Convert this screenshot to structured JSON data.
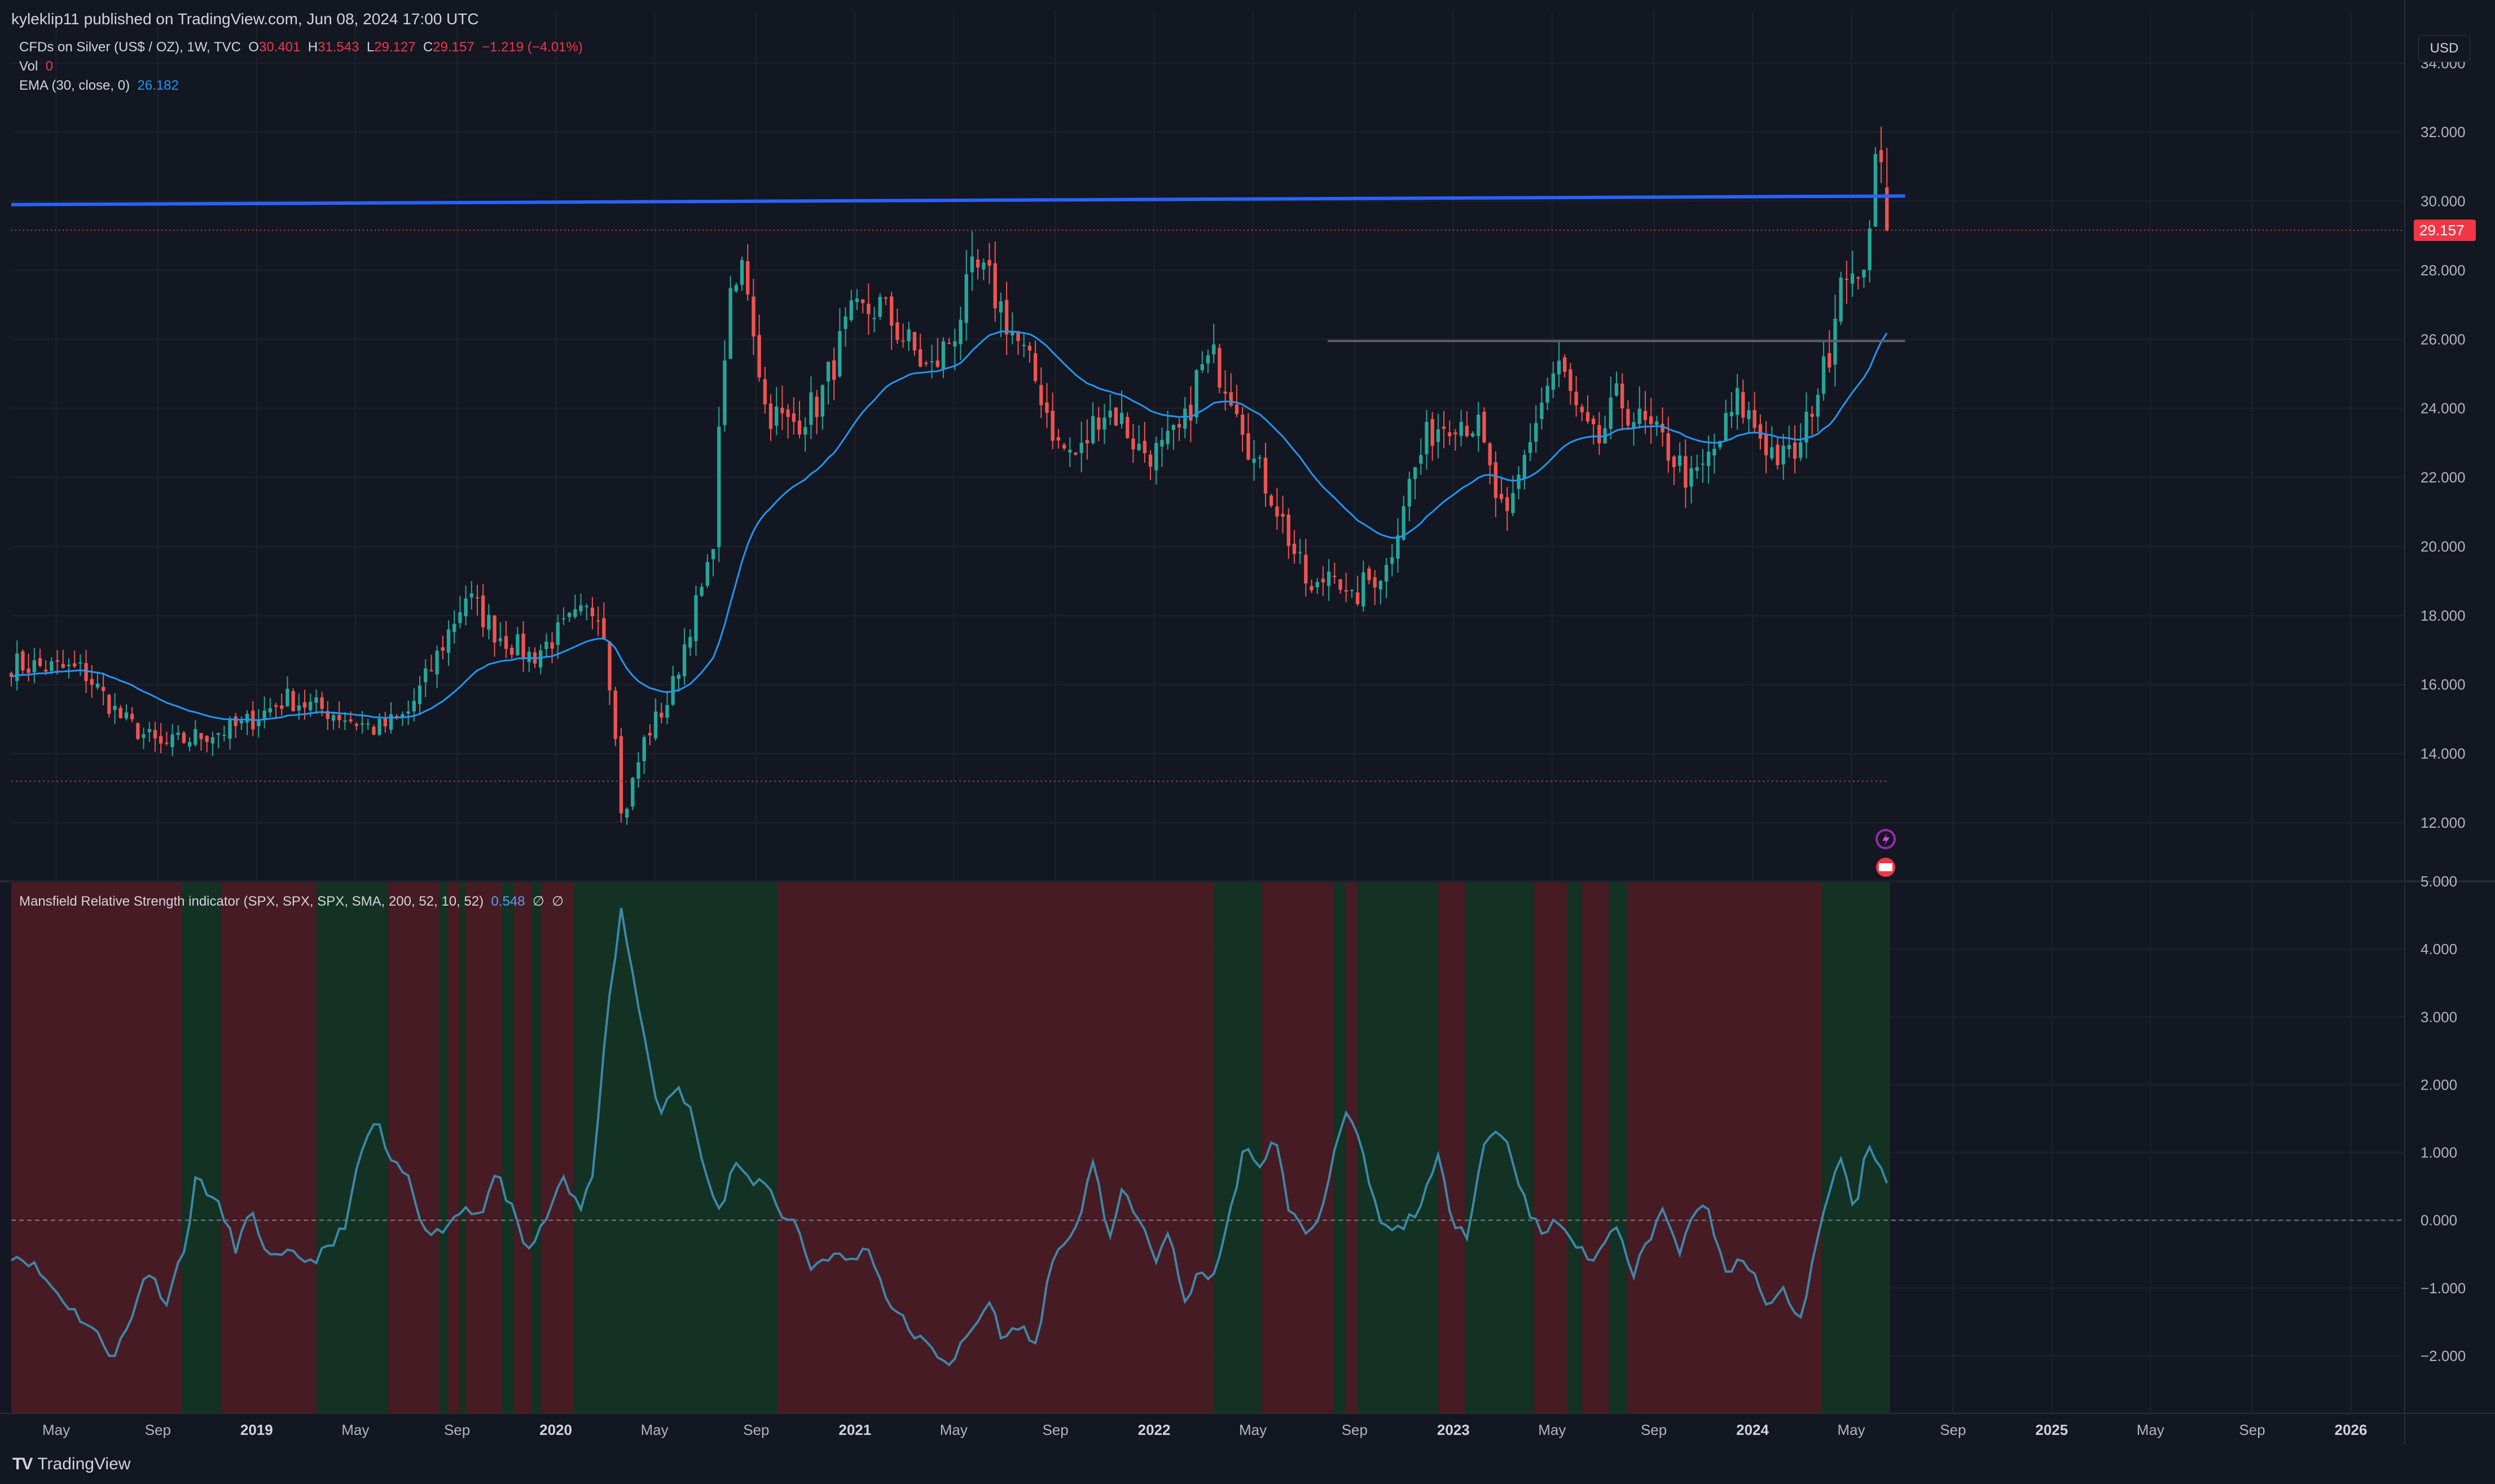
{
  "header": {
    "published_text": "kyleklip11 published on TradingView.com, Jun 08, 2024 17:00 UTC"
  },
  "legend": {
    "symbol_title": "CFDs on Silver (US$ / OZ), 1W, TVC",
    "open_label": "O",
    "open_value": "30.401",
    "high_label": "H",
    "high_value": "31.543",
    "low_label": "L",
    "low_value": "29.127",
    "close_label": "C",
    "close_value": "29.157",
    "change": "−1.219 (−4.01%)",
    "vol_label": "Vol",
    "vol_value": "0",
    "ema_label": "EMA (30, close, 0)",
    "ema_value": "26.182"
  },
  "currency_button": "USD",
  "indicator_legend": {
    "title": "Mansfield Relative Strength indicator (SPX, SPX, SPX, SMA, 200, 52, 10, 52)",
    "value": "0.548",
    "extra1": "∅",
    "extra2": "∅"
  },
  "branding": {
    "name": "TradingView"
  },
  "colors": {
    "background": "#131722",
    "up_candle": "#26a69a",
    "down_candle": "#ef5350",
    "ema": "#2196f3",
    "resistance_line": "#2962ff",
    "indicator_line": "#3d87a8",
    "bull_zone": "#133223",
    "bear_zone": "#471b23",
    "price_tag": "#f23645"
  },
  "chart_data": [
    {
      "type": "candlestick",
      "title": "CFDs on Silver (US$ / OZ), 1W, TVC",
      "ylim": [
        10.3,
        35.5
      ],
      "y_ticks": [
        "34.000",
        "32.000",
        "30.000",
        "28.000",
        "26.000",
        "24.000",
        "22.000",
        "20.000",
        "18.000",
        "16.000",
        "14.000",
        "12.000"
      ],
      "current_price_label": "29.157",
      "x_axis_labels": [
        "May",
        "Sep",
        "2019",
        "May",
        "Sep",
        "2020",
        "May",
        "Sep",
        "2021",
        "May",
        "Sep",
        "2022",
        "May",
        "Sep",
        "2023",
        "May",
        "Sep",
        "2024",
        "May",
        "Sep",
        "2025",
        "May",
        "Sep",
        "2026"
      ],
      "x_axis_positions_years": [
        2018.33,
        2018.67,
        2019.0,
        2019.33,
        2019.67,
        2020.0,
        2020.33,
        2020.67,
        2021.0,
        2021.33,
        2021.67,
        2022.0,
        2022.33,
        2022.67,
        2023.0,
        2023.33,
        2023.67,
        2024.0,
        2024.33,
        2024.67,
        2025.0,
        2025.33,
        2025.67,
        2026.0
      ],
      "xlim_years": [
        2018.18,
        2026.18
      ],
      "price_anchors": [
        [
          2018.18,
          16.6
        ],
        [
          2018.3,
          16.5
        ],
        [
          2018.42,
          16.4
        ],
        [
          2018.55,
          15.0
        ],
        [
          2018.68,
          14.2
        ],
        [
          2018.8,
          14.5
        ],
        [
          2018.95,
          14.8
        ],
        [
          2019.1,
          15.6
        ],
        [
          2019.25,
          15.2
        ],
        [
          2019.4,
          14.7
        ],
        [
          2019.5,
          15.1
        ],
        [
          2019.58,
          16.4
        ],
        [
          2019.7,
          18.6
        ],
        [
          2019.8,
          17.5
        ],
        [
          2019.92,
          16.8
        ],
        [
          2020.05,
          17.8
        ],
        [
          2020.15,
          18.3
        ],
        [
          2020.2,
          14.7
        ],
        [
          2020.22,
          12.0
        ],
        [
          2020.3,
          14.5
        ],
        [
          2020.38,
          15.6
        ],
        [
          2020.45,
          17.8
        ],
        [
          2020.52,
          19.5
        ],
        [
          2020.57,
          26.5
        ],
        [
          2020.63,
          28.3
        ],
        [
          2020.7,
          24.0
        ],
        [
          2020.78,
          23.5
        ],
        [
          2020.88,
          24.2
        ],
        [
          2020.98,
          26.5
        ],
        [
          2021.08,
          27.0
        ],
        [
          2021.15,
          26.2
        ],
        [
          2021.25,
          25.0
        ],
        [
          2021.33,
          26.2
        ],
        [
          2021.4,
          28.0
        ],
        [
          2021.45,
          27.6
        ],
        [
          2021.55,
          25.8
        ],
        [
          2021.62,
          24.5
        ],
        [
          2021.68,
          22.9
        ],
        [
          2021.75,
          22.6
        ],
        [
          2021.82,
          24.0
        ],
        [
          2021.88,
          23.8
        ],
        [
          2021.95,
          22.8
        ],
        [
          2022.02,
          22.7
        ],
        [
          2022.1,
          23.4
        ],
        [
          2022.15,
          25.1
        ],
        [
          2022.2,
          25.4
        ],
        [
          2022.28,
          24.2
        ],
        [
          2022.33,
          22.5
        ],
        [
          2022.4,
          21.4
        ],
        [
          2022.46,
          20.0
        ],
        [
          2022.53,
          18.5
        ],
        [
          2022.6,
          19.6
        ],
        [
          2022.65,
          18.2
        ],
        [
          2022.7,
          18.9
        ],
        [
          2022.78,
          19.4
        ],
        [
          2022.83,
          21.3
        ],
        [
          2022.92,
          23.3
        ],
        [
          2023.0,
          23.8
        ],
        [
          2023.08,
          23.5
        ],
        [
          2023.14,
          21.5
        ],
        [
          2023.18,
          20.6
        ],
        [
          2023.25,
          23.0
        ],
        [
          2023.32,
          24.8
        ],
        [
          2023.36,
          25.2
        ],
        [
          2023.42,
          23.6
        ],
        [
          2023.48,
          22.9
        ],
        [
          2023.55,
          24.3
        ],
        [
          2023.62,
          23.6
        ],
        [
          2023.7,
          23.0
        ],
        [
          2023.76,
          22.3
        ],
        [
          2023.8,
          21.8
        ],
        [
          2023.88,
          22.9
        ],
        [
          2023.95,
          24.2
        ],
        [
          2024.0,
          23.6
        ],
        [
          2024.05,
          22.9
        ],
        [
          2024.1,
          22.5
        ],
        [
          2024.16,
          22.8
        ],
        [
          2024.2,
          24.2
        ],
        [
          2024.25,
          25.3
        ],
        [
          2024.28,
          27.3
        ],
        [
          2024.31,
          28.5
        ],
        [
          2024.35,
          27.1
        ],
        [
          2024.38,
          28.9
        ],
        [
          2024.42,
          31.3
        ],
        [
          2024.44,
          30.4
        ],
        [
          2024.45,
          29.157
        ]
      ],
      "ema_series": {
        "name": "EMA (30, close, 0)",
        "last_value": 26.182
      },
      "horizontal_lines": [
        {
          "kind": "resistance trendline",
          "x": [
            2018.18,
            2024.51
          ],
          "y": [
            29.9,
            30.15
          ]
        },
        {
          "kind": "horizontal",
          "x": [
            2022.58,
            2024.51
          ],
          "y": [
            25.95,
            25.95
          ]
        },
        {
          "kind": "dotted",
          "x": [
            2018.18,
            2024.45
          ],
          "y": [
            13.2,
            13.2
          ]
        },
        {
          "kind": "dotted price",
          "x": [
            2018.18,
            2026.18
          ],
          "y": [
            29.157,
            29.157
          ]
        }
      ]
    },
    {
      "type": "line",
      "title": "Mansfield Relative Strength indicator (SPX, SPX, SPX, SMA, 200, 52, 10, 52)",
      "ylim": [
        -2.85,
        5.0
      ],
      "y_ticks": [
        "5.000",
        "4.000",
        "3.000",
        "2.000",
        "1.000",
        "0.000",
        "−1.000",
        "−2.000"
      ],
      "last_value": 0.548,
      "zero_line": 0,
      "anchors": [
        [
          2018.18,
          -0.5
        ],
        [
          2018.24,
          -0.6
        ],
        [
          2018.3,
          -0.9
        ],
        [
          2018.38,
          -1.3
        ],
        [
          2018.45,
          -1.6
        ],
        [
          2018.52,
          -2.0
        ],
        [
          2018.58,
          -1.5
        ],
        [
          2018.63,
          -0.7
        ],
        [
          2018.7,
          -1.2
        ],
        [
          2018.77,
          -0.2
        ],
        [
          2018.8,
          0.7
        ],
        [
          2018.84,
          0.4
        ],
        [
          2018.88,
          0.15
        ],
        [
          2018.93,
          -0.4
        ],
        [
          2018.98,
          0.1
        ],
        [
          2019.05,
          -0.6
        ],
        [
          2019.12,
          -0.5
        ],
        [
          2019.18,
          -0.6
        ],
        [
          2019.25,
          -0.4
        ],
        [
          2019.3,
          0.0
        ],
        [
          2019.35,
          1.0
        ],
        [
          2019.4,
          1.5
        ],
        [
          2019.45,
          0.8
        ],
        [
          2019.5,
          0.7
        ],
        [
          2019.55,
          0.0
        ],
        [
          2019.6,
          -0.2
        ],
        [
          2019.65,
          0.0
        ],
        [
          2019.7,
          0.2
        ],
        [
          2019.75,
          0.1
        ],
        [
          2019.8,
          0.7
        ],
        [
          2019.85,
          0.2
        ],
        [
          2019.9,
          -0.5
        ],
        [
          2019.97,
          0.0
        ],
        [
          2020.02,
          0.7
        ],
        [
          2020.08,
          0.1
        ],
        [
          2020.12,
          0.6
        ],
        [
          2020.18,
          3.3
        ],
        [
          2020.22,
          4.6
        ],
        [
          2020.26,
          3.5
        ],
        [
          2020.32,
          2.2
        ],
        [
          2020.35,
          1.5
        ],
        [
          2020.4,
          2.0
        ],
        [
          2020.45,
          1.6
        ],
        [
          2020.5,
          0.8
        ],
        [
          2020.55,
          0.1
        ],
        [
          2020.6,
          0.9
        ],
        [
          2020.65,
          0.5
        ],
        [
          2020.7,
          0.6
        ],
        [
          2020.75,
          0.1
        ],
        [
          2020.8,
          0.0
        ],
        [
          2020.85,
          -0.7
        ],
        [
          2020.92,
          -0.5
        ],
        [
          2020.98,
          -0.6
        ],
        [
          2021.05,
          -0.4
        ],
        [
          2021.1,
          -1.1
        ],
        [
          2021.18,
          -1.6
        ],
        [
          2021.25,
          -1.9
        ],
        [
          2021.32,
          -2.1
        ],
        [
          2021.38,
          -1.7
        ],
        [
          2021.45,
          -1.2
        ],
        [
          2021.5,
          -1.8
        ],
        [
          2021.55,
          -1.5
        ],
        [
          2021.6,
          -1.9
        ],
        [
          2021.65,
          -0.8
        ],
        [
          2021.7,
          -0.3
        ],
        [
          2021.75,
          0.0
        ],
        [
          2021.8,
          0.9
        ],
        [
          2021.85,
          -0.3
        ],
        [
          2021.9,
          0.5
        ],
        [
          2021.95,
          0.0
        ],
        [
          2022.0,
          -0.6
        ],
        [
          2022.05,
          -0.2
        ],
        [
          2022.1,
          -1.2
        ],
        [
          2022.15,
          -0.8
        ],
        [
          2022.2,
          -0.8
        ],
        [
          2022.25,
          0.0
        ],
        [
          2022.3,
          1.1
        ],
        [
          2022.35,
          0.7
        ],
        [
          2022.4,
          1.3
        ],
        [
          2022.45,
          0.2
        ],
        [
          2022.5,
          -0.2
        ],
        [
          2022.55,
          0.0
        ],
        [
          2022.6,
          1.0
        ],
        [
          2022.65,
          1.6
        ],
        [
          2022.7,
          0.9
        ],
        [
          2022.75,
          0.0
        ],
        [
          2022.8,
          -0.2
        ],
        [
          2022.85,
          0.0
        ],
        [
          2022.9,
          0.3
        ],
        [
          2022.95,
          0.9
        ],
        [
          2023.0,
          0.0
        ],
        [
          2023.05,
          -0.2
        ],
        [
          2023.1,
          1.1
        ],
        [
          2023.15,
          1.4
        ],
        [
          2023.2,
          0.9
        ],
        [
          2023.25,
          0.1
        ],
        [
          2023.3,
          -0.2
        ],
        [
          2023.35,
          0.0
        ],
        [
          2023.4,
          -0.3
        ],
        [
          2023.45,
          -0.6
        ],
        [
          2023.5,
          -0.4
        ],
        [
          2023.55,
          0.0
        ],
        [
          2023.6,
          -0.8
        ],
        [
          2023.65,
          -0.3
        ],
        [
          2023.7,
          0.2
        ],
        [
          2023.75,
          -0.5
        ],
        [
          2023.8,
          0.0
        ],
        [
          2023.85,
          0.3
        ],
        [
          2023.88,
          -0.4
        ],
        [
          2023.92,
          -0.9
        ],
        [
          2023.96,
          -0.5
        ],
        [
          2024.0,
          -0.8
        ],
        [
          2024.05,
          -1.3
        ],
        [
          2024.1,
          -1.0
        ],
        [
          2024.16,
          -1.5
        ],
        [
          2024.2,
          -0.6
        ],
        [
          2024.25,
          0.3
        ],
        [
          2024.3,
          1.0
        ],
        [
          2024.34,
          0.0
        ],
        [
          2024.38,
          1.2
        ],
        [
          2024.42,
          0.8
        ],
        [
          2024.45,
          0.548
        ]
      ],
      "zones": [
        {
          "start": 2018.18,
          "end": 2018.75,
          "state": "bear"
        },
        {
          "start": 2018.75,
          "end": 2018.88,
          "state": "bull"
        },
        {
          "start": 2018.88,
          "end": 2019.2,
          "state": "bear"
        },
        {
          "start": 2019.2,
          "end": 2019.44,
          "state": "bull"
        },
        {
          "start": 2019.44,
          "end": 2019.61,
          "state": "bear"
        },
        {
          "start": 2019.61,
          "end": 2019.64,
          "state": "bull"
        },
        {
          "start": 2019.64,
          "end": 2019.68,
          "state": "bear"
        },
        {
          "start": 2019.68,
          "end": 2019.7,
          "state": "bull"
        },
        {
          "start": 2019.7,
          "end": 2019.82,
          "state": "bear"
        },
        {
          "start": 2019.82,
          "end": 2019.86,
          "state": "bull"
        },
        {
          "start": 2019.86,
          "end": 2019.92,
          "state": "bear"
        },
        {
          "start": 2019.92,
          "end": 2019.95,
          "state": "bull"
        },
        {
          "start": 2019.95,
          "end": 2020.06,
          "state": "bear"
        },
        {
          "start": 2020.06,
          "end": 2020.74,
          "state": "bull"
        },
        {
          "start": 2020.74,
          "end": 2022.2,
          "state": "bear"
        },
        {
          "start": 2022.2,
          "end": 2022.36,
          "state": "bull"
        },
        {
          "start": 2022.36,
          "end": 2022.6,
          "state": "bear"
        },
        {
          "start": 2022.6,
          "end": 2022.64,
          "state": "bull"
        },
        {
          "start": 2022.64,
          "end": 2022.68,
          "state": "bear"
        },
        {
          "start": 2022.68,
          "end": 2022.95,
          "state": "bull"
        },
        {
          "start": 2022.95,
          "end": 2023.04,
          "state": "bear"
        },
        {
          "start": 2023.04,
          "end": 2023.27,
          "state": "bull"
        },
        {
          "start": 2023.27,
          "end": 2023.38,
          "state": "bear"
        },
        {
          "start": 2023.38,
          "end": 2023.43,
          "state": "bull"
        },
        {
          "start": 2023.43,
          "end": 2023.52,
          "state": "bear"
        },
        {
          "start": 2023.52,
          "end": 2023.58,
          "state": "bull"
        },
        {
          "start": 2023.58,
          "end": 2024.23,
          "state": "bear"
        },
        {
          "start": 2024.23,
          "end": 2024.46,
          "state": "bull"
        }
      ]
    }
  ]
}
